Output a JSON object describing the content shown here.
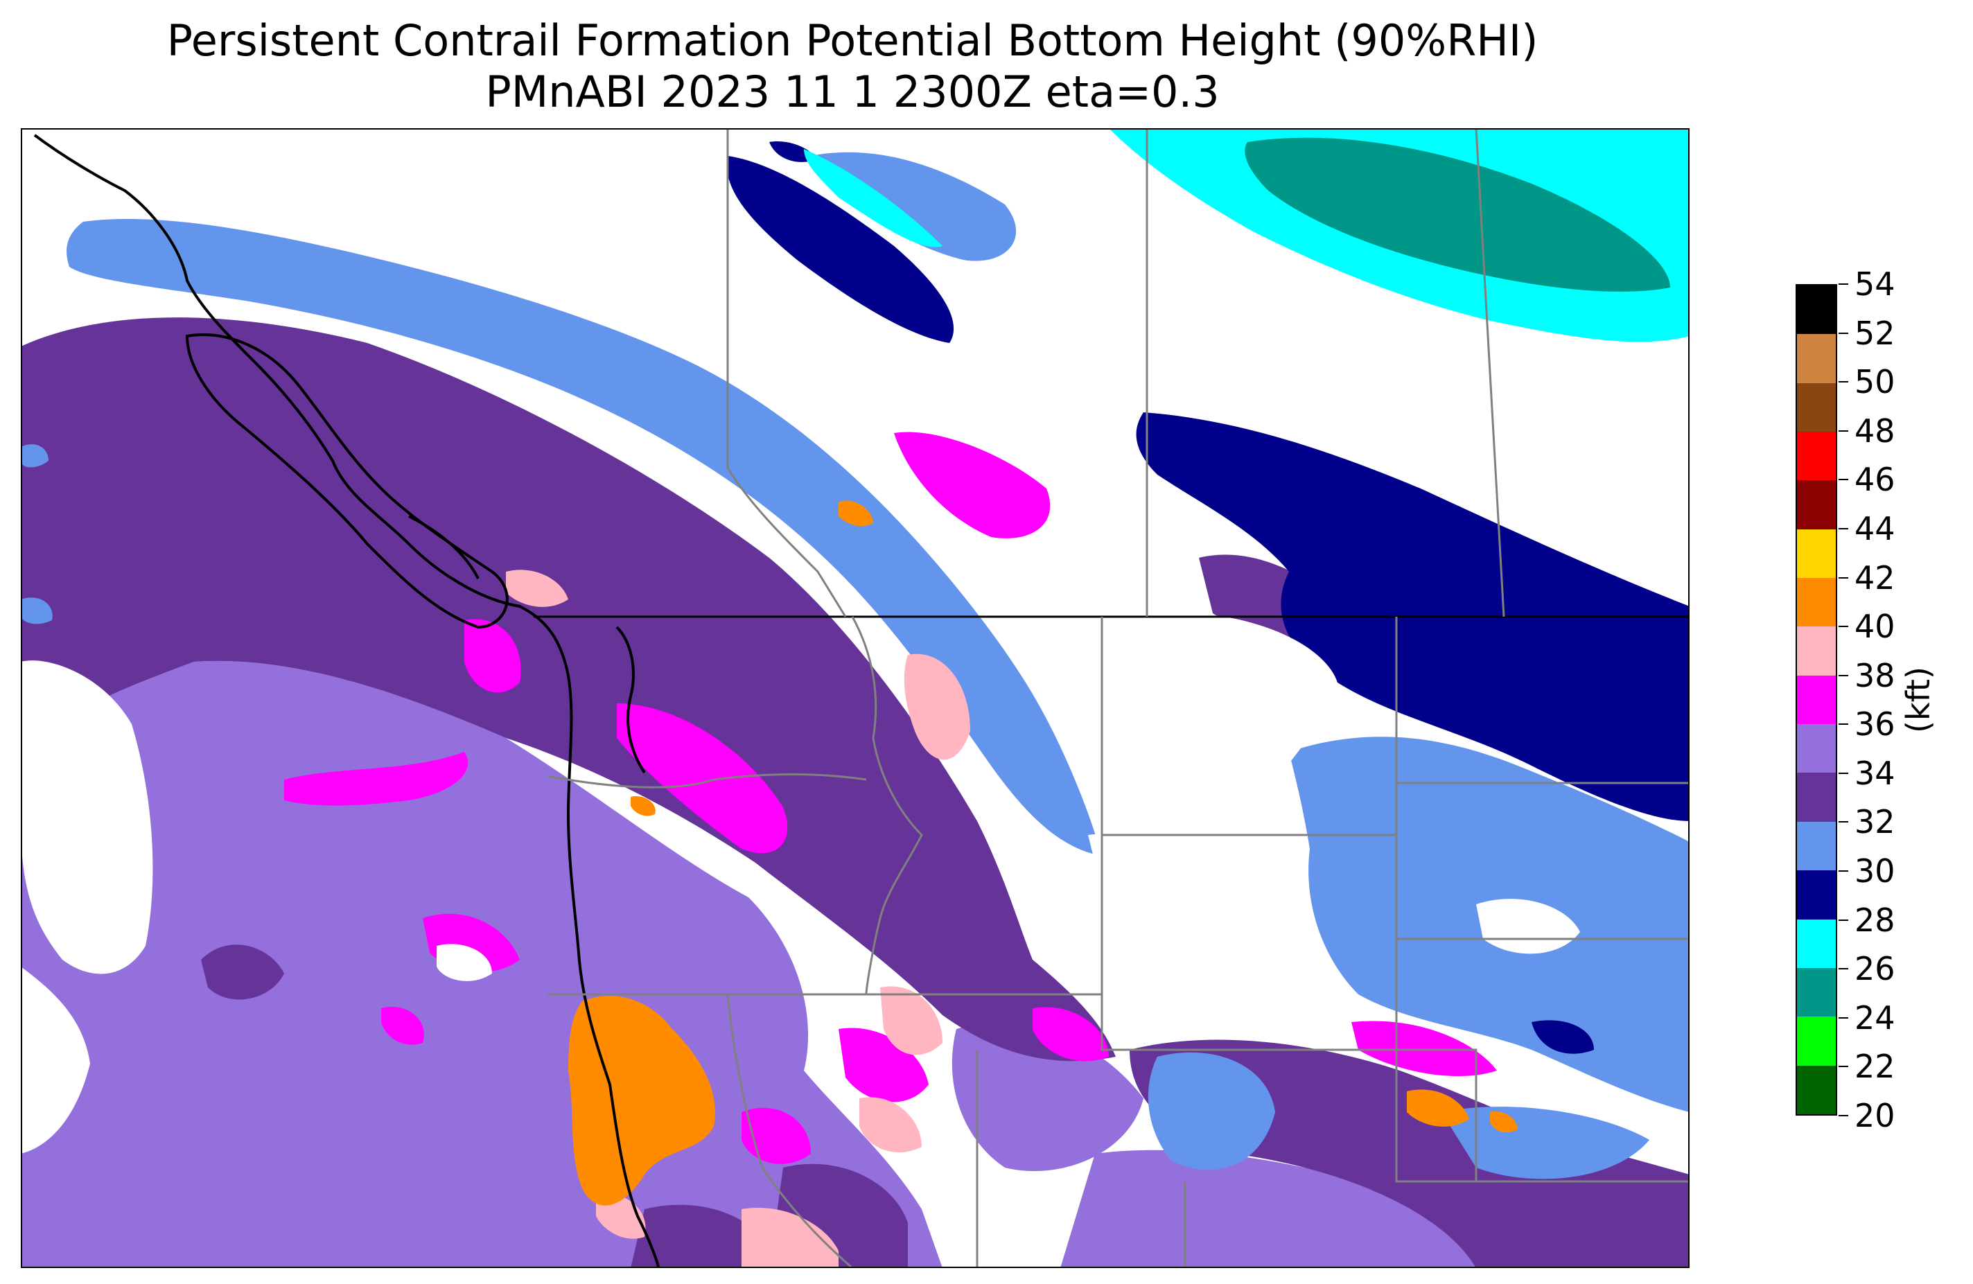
{
  "title": {
    "line1": "Persistent Contrail Formation Potential Bottom Height (90%RHI)",
    "line2": "PMnABI  2023 11  1   2300Z  eta=0.3"
  },
  "colorbar": {
    "unit": "(kft)",
    "ticks": [
      "20",
      "22",
      "24",
      "26",
      "28",
      "30",
      "32",
      "34",
      "36",
      "38",
      "40",
      "42",
      "44",
      "46",
      "48",
      "50",
      "52",
      "54"
    ],
    "colors": [
      "#006400",
      "#00ff00",
      "#009688",
      "#00ffff",
      "#00008b",
      "#6495ed",
      "#663399",
      "#9370db",
      "#ff00ff",
      "#ffb6c1",
      "#ff8c00",
      "#ffd700",
      "#8b0000",
      "#ff0000",
      "#8b4513",
      "#cd853f",
      "#000000"
    ]
  },
  "map": {
    "background": "#ffffff",
    "layers": [
      {
        "name": "field-teal",
        "level": "24-26",
        "color": "#009688"
      },
      {
        "name": "field-cyan",
        "level": "26-28",
        "color": "#00ffff"
      },
      {
        "name": "field-navy",
        "level": "28-30",
        "color": "#00008b"
      },
      {
        "name": "field-cornflower",
        "level": "30-32",
        "color": "#6495ed"
      },
      {
        "name": "field-darkpurple",
        "level": "32-34",
        "color": "#663399"
      },
      {
        "name": "field-lavender",
        "level": "34-36",
        "color": "#9370db"
      },
      {
        "name": "field-magenta",
        "level": "36-38",
        "color": "#ff00ff"
      },
      {
        "name": "field-pink",
        "level": "38-40",
        "color": "#ffb6c1"
      },
      {
        "name": "field-orange",
        "level": "40-42",
        "color": "#ff8c00"
      }
    ]
  }
}
